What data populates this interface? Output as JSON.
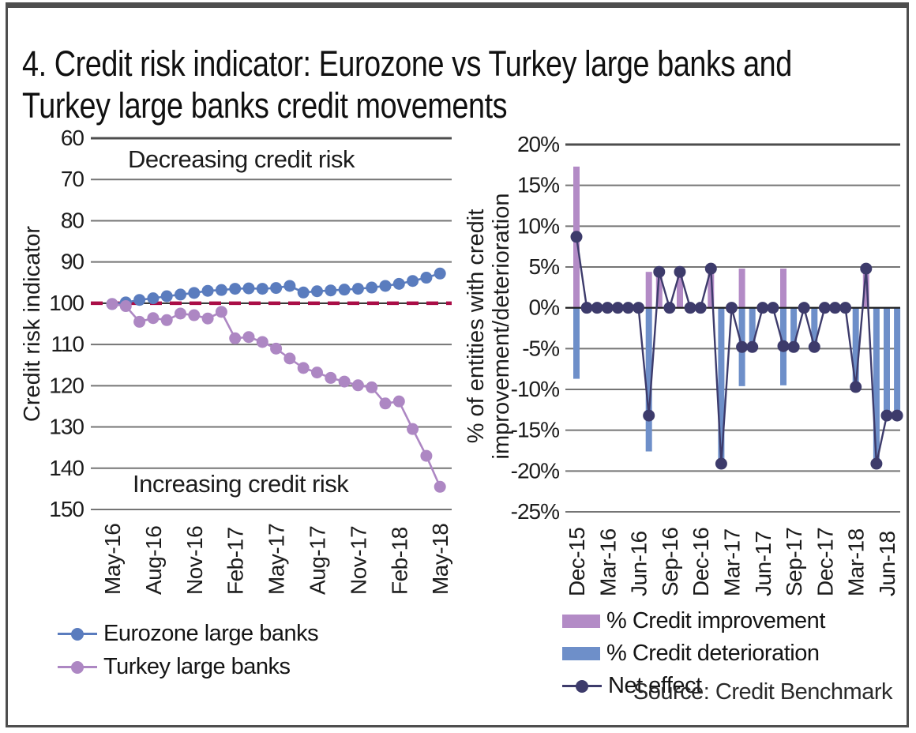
{
  "title": {
    "line1": "4. Credit risk indicator: Eurozone vs Turkey large banks and",
    "line2": "Turkey large banks credit movements"
  },
  "source": "Source: Credit Benchmark",
  "colors": {
    "eurozone_blue": "#5A7CBE",
    "turkey_purple": "#AD87C3",
    "improvement_purple": "#B38BC6",
    "deterioration_blue": "#6E8FC9",
    "net_navy": "#3D3B6B",
    "crimson_text": "#C11E52",
    "crimson_dash": "#AA0E47",
    "gridline": "#757575",
    "gridline_dark": "#4d4d4d",
    "zero_axis": "#1a1a1a",
    "frame_border": "#4e4e4e"
  },
  "chart_data": [
    {
      "type": "line",
      "panel": "left",
      "ylabel": "Credit risk indicator",
      "y_axis_inverted": true,
      "ylim_top": 60,
      "ylim_bottom": 150,
      "yticks": [
        60,
        70,
        80,
        90,
        100,
        110,
        120,
        130,
        140,
        150
      ],
      "grid": true,
      "xtick_every": 3,
      "categories": [
        "May-16",
        "Jun-16",
        "Jul-16",
        "Aug-16",
        "Sep-16",
        "Oct-16",
        "Nov-16",
        "Dec-16",
        "Jan-17",
        "Feb-17",
        "Mar-17",
        "Apr-17",
        "May-17",
        "Jun-17",
        "Jul-17",
        "Aug-17",
        "Sep-17",
        "Oct-17",
        "Nov-17",
        "Dec-17",
        "Jan-18",
        "Feb-18",
        "Mar-18",
        "Apr-18",
        "May-18"
      ],
      "reference_line": {
        "value": 100,
        "style": "dashed"
      },
      "annotations": [
        {
          "text": "Decreasing credit risk",
          "position": "top"
        },
        {
          "text": "Increasing credit risk",
          "position": "bottom"
        }
      ],
      "series": [
        {
          "name": "Eurozone large banks",
          "color_key": "eurozone_blue",
          "values": [
            100.2,
            99.8,
            99.2,
            98.8,
            98.3,
            97.9,
            97.5,
            97.0,
            96.8,
            96.5,
            96.4,
            96.5,
            96.3,
            95.8,
            97.4,
            97.1,
            96.9,
            96.7,
            96.5,
            96.2,
            95.8,
            95.3,
            94.6,
            93.8,
            92.8
          ]
        },
        {
          "name": "Turkey large banks",
          "color_key": "turkey_purple",
          "values": [
            100.2,
            100.7,
            104.5,
            103.6,
            104.1,
            102.5,
            102.9,
            103.7,
            102.1,
            108.5,
            108.2,
            109.4,
            111.0,
            113.4,
            115.7,
            116.8,
            118.1,
            119.0,
            119.9,
            120.4,
            124.3,
            123.8,
            130.5,
            137.0,
            144.5
          ]
        }
      ],
      "legend_position": "below-left"
    },
    {
      "type": "bar+line",
      "panel": "right",
      "ylabel_line1": "% of entities with credit",
      "ylabel_line2": "improvement/deterioration",
      "ylim_top": 20,
      "ylim_bottom": -25,
      "yticks": [
        20,
        15,
        10,
        5,
        0,
        -5,
        -10,
        -15,
        -20,
        -25
      ],
      "ytick_format": "percent",
      "grid": true,
      "xtick_every": 3,
      "categories": [
        "Dec-15",
        "Jan-16",
        "Feb-16",
        "Mar-16",
        "Apr-16",
        "May-16",
        "Jun-16",
        "Jul-16",
        "Aug-16",
        "Sep-16",
        "Oct-16",
        "Nov-16",
        "Dec-16",
        "Jan-17",
        "Feb-17",
        "Mar-17",
        "Apr-17",
        "May-17",
        "Jun-17",
        "Jul-17",
        "Aug-17",
        "Sep-17",
        "Oct-17",
        "Nov-17",
        "Dec-17",
        "Jan-18",
        "Feb-18",
        "Mar-18",
        "Apr-18",
        "May-18",
        "Jun-18",
        "Jul-18"
      ],
      "series": [
        {
          "name": "% Credit improvement",
          "type": "bar",
          "color_key": "improvement_purple",
          "values": [
            17.3,
            0,
            0,
            0,
            0,
            0,
            0,
            4.4,
            4.4,
            0,
            4.4,
            0,
            0,
            4.8,
            0,
            0,
            4.8,
            0,
            0,
            0,
            4.8,
            0,
            0,
            0,
            0,
            0,
            0,
            0,
            4.8,
            0,
            0,
            0
          ]
        },
        {
          "name": "% Credit deterioration",
          "type": "bar",
          "color_key": "deterioration_blue",
          "values": [
            -8.7,
            0,
            0,
            0,
            0,
            0,
            0,
            -17.6,
            0,
            0,
            0,
            0,
            0,
            0,
            -19.1,
            0,
            -9.6,
            -4.8,
            0,
            0,
            -9.5,
            -4.8,
            0,
            -4.8,
            0,
            0,
            0,
            -9.7,
            0,
            -19.1,
            -13.2,
            -13.2
          ]
        },
        {
          "name": "Net effect",
          "type": "line",
          "color_key": "net_navy",
          "values": [
            8.7,
            0,
            0,
            0,
            0,
            0,
            0,
            -13.2,
            4.4,
            0,
            4.4,
            0,
            0,
            4.8,
            -19.1,
            0,
            -4.8,
            -4.8,
            0,
            0,
            -4.7,
            -4.8,
            0,
            -4.8,
            0,
            0,
            0,
            -9.7,
            4.8,
            -19.1,
            -13.2,
            -13.2
          ]
        }
      ],
      "legend_position": "below-left"
    }
  ]
}
